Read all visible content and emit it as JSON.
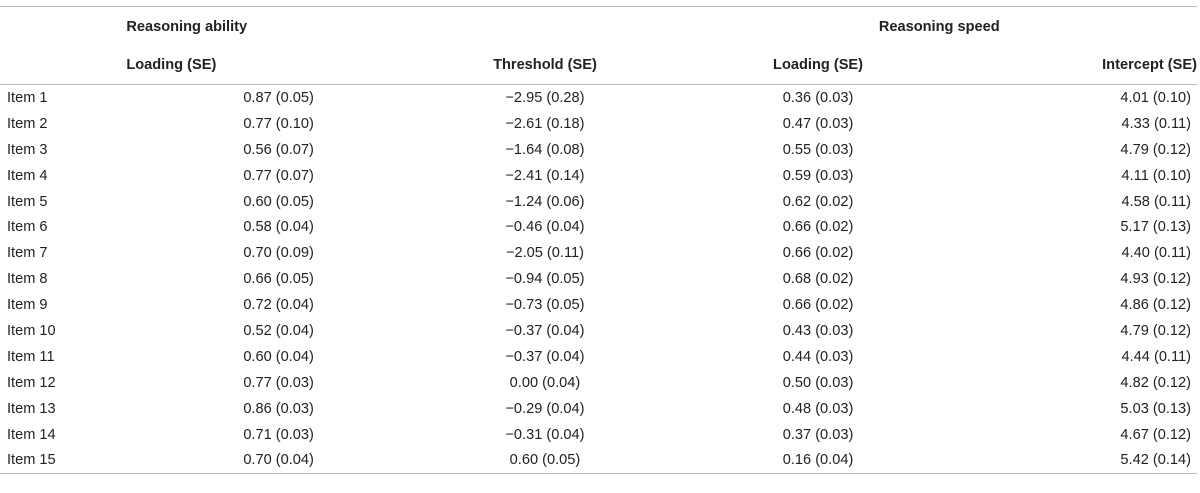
{
  "table": {
    "group_headers": {
      "ability": "Reasoning ability",
      "speed": "Reasoning speed"
    },
    "column_headers": {
      "ability_loading": "Loading (SE)",
      "ability_threshold": "Threshold (SE)",
      "speed_loading": "Loading (SE)",
      "speed_intercept": "Intercept (SE)"
    },
    "rows": [
      {
        "item": "Item 1",
        "ability_loading": "0.87 (0.05)",
        "ability_threshold": "−2.95 (0.28)",
        "speed_loading": "0.36 (0.03)",
        "speed_intercept": "4.01 (0.10)"
      },
      {
        "item": "Item 2",
        "ability_loading": "0.77 (0.10)",
        "ability_threshold": "−2.61 (0.18)",
        "speed_loading": "0.47 (0.03)",
        "speed_intercept": "4.33 (0.11)"
      },
      {
        "item": "Item 3",
        "ability_loading": "0.56 (0.07)",
        "ability_threshold": "−1.64 (0.08)",
        "speed_loading": "0.55 (0.03)",
        "speed_intercept": "4.79 (0.12)"
      },
      {
        "item": "Item 4",
        "ability_loading": "0.77 (0.07)",
        "ability_threshold": "−2.41 (0.14)",
        "speed_loading": "0.59 (0.03)",
        "speed_intercept": "4.11 (0.10)"
      },
      {
        "item": "Item 5",
        "ability_loading": "0.60 (0.05)",
        "ability_threshold": "−1.24 (0.06)",
        "speed_loading": "0.62 (0.02)",
        "speed_intercept": "4.58 (0.11)"
      },
      {
        "item": "Item 6",
        "ability_loading": "0.58 (0.04)",
        "ability_threshold": "−0.46 (0.04)",
        "speed_loading": "0.66 (0.02)",
        "speed_intercept": "5.17 (0.13)"
      },
      {
        "item": "Item 7",
        "ability_loading": "0.70 (0.09)",
        "ability_threshold": "−2.05 (0.11)",
        "speed_loading": "0.66 (0.02)",
        "speed_intercept": "4.40 (0.11)"
      },
      {
        "item": "Item 8",
        "ability_loading": "0.66 (0.05)",
        "ability_threshold": "−0.94 (0.05)",
        "speed_loading": "0.68 (0.02)",
        "speed_intercept": "4.93 (0.12)"
      },
      {
        "item": "Item 9",
        "ability_loading": "0.72 (0.04)",
        "ability_threshold": "−0.73 (0.05)",
        "speed_loading": "0.66 (0.02)",
        "speed_intercept": "4.86 (0.12)"
      },
      {
        "item": "Item 10",
        "ability_loading": "0.52 (0.04)",
        "ability_threshold": "−0.37 (0.04)",
        "speed_loading": "0.43 (0.03)",
        "speed_intercept": "4.79 (0.12)"
      },
      {
        "item": "Item 11",
        "ability_loading": "0.60 (0.04)",
        "ability_threshold": "−0.37 (0.04)",
        "speed_loading": "0.44 (0.03)",
        "speed_intercept": "4.44 (0.11)"
      },
      {
        "item": "Item 12",
        "ability_loading": "0.77 (0.03)",
        "ability_threshold": "0.00 (0.04)",
        "speed_loading": "0.50 (0.03)",
        "speed_intercept": "4.82 (0.12)"
      },
      {
        "item": "Item 13",
        "ability_loading": "0.86 (0.03)",
        "ability_threshold": "−0.29 (0.04)",
        "speed_loading": "0.48 (0.03)",
        "speed_intercept": "5.03 (0.13)"
      },
      {
        "item": "Item 14",
        "ability_loading": "0.71 (0.03)",
        "ability_threshold": "−0.31 (0.04)",
        "speed_loading": "0.37 (0.03)",
        "speed_intercept": "4.67 (0.12)"
      },
      {
        "item": "Item 15",
        "ability_loading": "0.70 (0.04)",
        "ability_threshold": "0.60 (0.05)",
        "speed_loading": "0.16 (0.04)",
        "speed_intercept": "5.42 (0.14)"
      }
    ]
  }
}
